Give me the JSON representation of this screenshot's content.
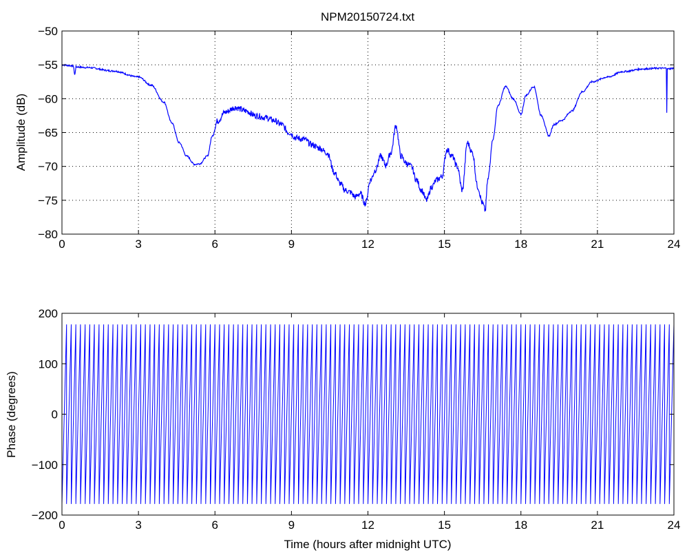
{
  "chart_data": [
    {
      "type": "line",
      "title": "NPM20150724.txt",
      "xlabel": "",
      "ylabel": "Amplitude (dB)",
      "xlim": [
        0,
        24
      ],
      "ylim": [
        -80,
        -50
      ],
      "xticks": [
        "0",
        "3",
        "6",
        "9",
        "12",
        "15",
        "18",
        "21",
        "24"
      ],
      "yticks": [
        "−80",
        "−75",
        "−70",
        "−65",
        "−60",
        "−55",
        "−50"
      ],
      "grid": true,
      "color": "#0000ff",
      "series": [
        {
          "x": [
            0,
            0.3,
            0.45,
            0.5,
            0.55,
            1,
            2,
            3,
            3.5,
            4,
            4.3,
            4.6,
            4.9,
            5.2,
            5.4,
            5.7,
            5.9,
            6.1,
            6.4,
            6.8,
            7.2,
            7.6,
            8.0,
            8.3,
            8.6,
            8.9,
            9.2,
            9.5,
            9.8,
            10.1,
            10.4,
            10.7,
            10.9,
            11.1,
            11.3,
            11.5,
            11.7,
            11.9,
            12.1,
            12.3,
            12.5,
            12.7,
            12.9,
            13.1,
            13.3,
            13.5,
            13.7,
            13.9,
            14.1,
            14.3,
            14.5,
            14.7,
            14.9,
            15.1,
            15.3,
            15.5,
            15.7,
            15.9,
            16.1,
            16.3,
            16.5,
            16.6,
            16.7,
            16.9,
            17.1,
            17.4,
            17.7,
            18.0,
            18.2,
            18.5,
            18.8,
            19.1,
            19.3,
            19.6,
            20.0,
            20.4,
            20.8,
            21.4,
            22.0,
            22.8,
            23.4,
            23.7,
            23.72,
            23.74,
            24
          ],
          "y": [
            -55,
            -55.1,
            -55.2,
            -56.5,
            -55.3,
            -55.4,
            -55.9,
            -56.8,
            -58.0,
            -60.5,
            -63.5,
            -66.5,
            -68.5,
            -69.7,
            -69.6,
            -68.5,
            -65.5,
            -63.3,
            -62.0,
            -61.3,
            -61.8,
            -62.5,
            -62.8,
            -63.2,
            -63.8,
            -65.0,
            -65.8,
            -66.0,
            -66.8,
            -67.3,
            -68.0,
            -71.0,
            -72.5,
            -73.5,
            -73.8,
            -74.5,
            -74.0,
            -75.5,
            -72.0,
            -70.5,
            -68.5,
            -69.8,
            -68.0,
            -64.0,
            -68.5,
            -69.5,
            -70.0,
            -72.0,
            -73.5,
            -75.0,
            -73.0,
            -72.0,
            -71.5,
            -67.5,
            -68.5,
            -70.0,
            -73.5,
            -66.5,
            -68.0,
            -73.0,
            -75.5,
            -76.5,
            -72.0,
            -66.0,
            -61.0,
            -58.2,
            -60.0,
            -62.3,
            -59.5,
            -58.2,
            -62.5,
            -65.5,
            -63.8,
            -63.2,
            -61.8,
            -59.0,
            -57.5,
            -56.8,
            -56.0,
            -55.6,
            -55.5,
            -55.5,
            -62.0,
            -55.6,
            -55.5
          ]
        }
      ]
    },
    {
      "type": "line",
      "title": "",
      "xlabel": "Time (hours after midnight UTC)",
      "ylabel": "Phase (degrees)",
      "xlim": [
        0,
        24
      ],
      "ylim": [
        -200,
        200
      ],
      "xticks": [
        "0",
        "3",
        "6",
        "9",
        "12",
        "15",
        "18",
        "21",
        "24"
      ],
      "yticks": [
        "−200",
        "−100",
        "0",
        "100",
        "200"
      ],
      "grid": false,
      "color": "#0000ff",
      "series": [
        {
          "description_values": "sawtooth wrapped phase between −180 and 180 degrees",
          "x": [
            0,
            24
          ],
          "y": [
            -180,
            180
          ],
          "cycles": 132
        }
      ]
    }
  ]
}
